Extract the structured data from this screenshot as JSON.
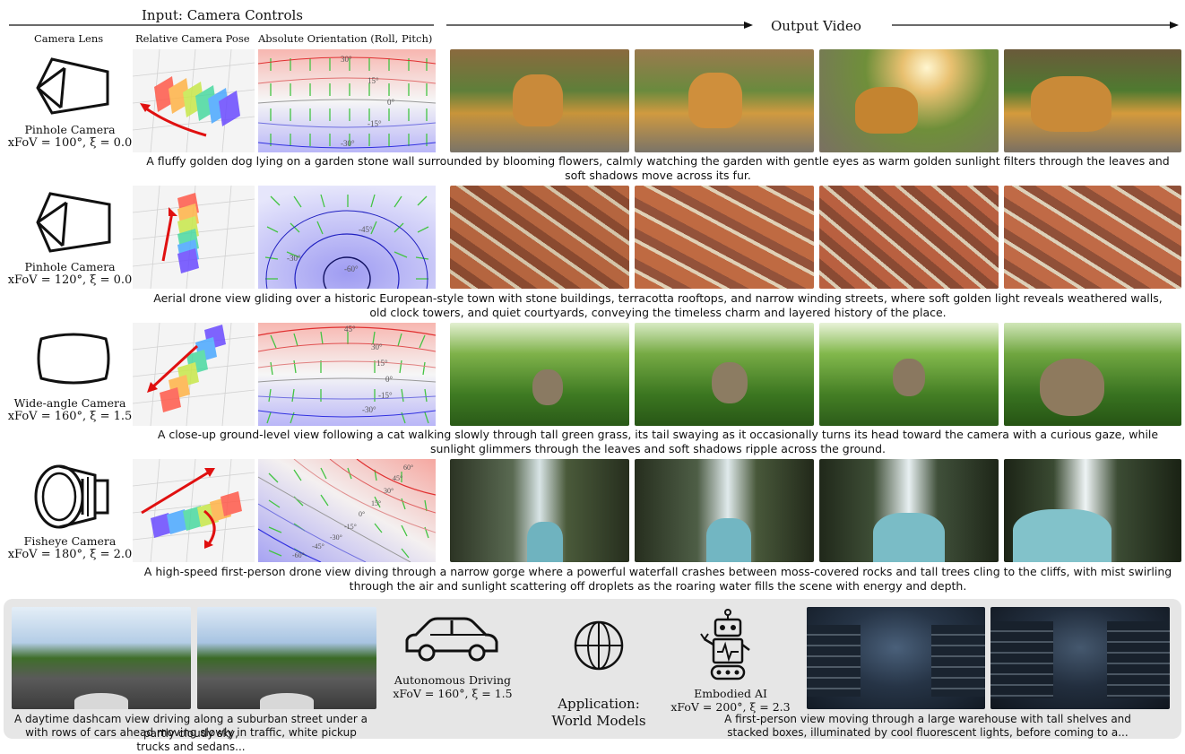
{
  "header": {
    "input_title": "Input: Camera Controls",
    "output_title": "Output Video",
    "col_lens": "Camera Lens",
    "col_pose": "Relative Camera Pose",
    "col_orient": "Absolute Orientation (Roll, Pitch)"
  },
  "rows": [
    {
      "camera": "Pinhole Camera",
      "params": "xFoV = 100°, ξ = 0.0",
      "caption": "A fluffy golden dog lying on a garden stone wall surrounded by blooming flowers, calmly watching the garden with gentle eyes as warm golden sunlight filters through the leaves and soft shadows move across its fur.",
      "orient_labels": [
        "30°",
        "15°",
        "0°",
        "-15°",
        "-30°"
      ],
      "colors": {
        "top": "#7a5a35",
        "mid": "#3f6b2a",
        "bottom": "#6e6a62"
      }
    },
    {
      "camera": "Pinhole Camera",
      "params": "xFoV = 120°, ξ = 0.0",
      "caption": "Aerial drone view gliding over a historic European-style town with stone buildings, terracotta rooftops, and narrow winding streets, where soft golden light reveals weathered walls, old clock towers, and quiet courtyards, conveying the timeless charm and layered history of the place.",
      "orient_labels": [
        "-30°",
        "-45°",
        "-60°"
      ],
      "colors": {
        "top": "#a86a45",
        "mid": "#b5563a",
        "bottom": "#8a4a35"
      }
    },
    {
      "camera": "Wide-angle Camera",
      "params": "xFoV = 160°, ξ = 1.5",
      "caption": "A close-up ground-level view following a cat walking slowly through tall green grass, its tail swaying as it occasionally turns its head toward the camera with a curious gaze, while sunlight glimmers through the leaves and soft shadows ripple across the ground.",
      "orient_labels": [
        "45°",
        "30°",
        "15°",
        "0°",
        "-15°",
        "-30°"
      ],
      "colors": {
        "top": "#d9e8c8",
        "mid": "#4f8a2c",
        "bottom": "#2f5a1c"
      }
    },
    {
      "camera": "Fisheye Camera",
      "params": "xFoV = 180°, ξ = 2.0",
      "caption": "A high-speed first-person drone view diving through a narrow gorge where a powerful waterfall crashes between moss-covered rocks and tall trees cling to the cliffs, with mist swirling through the air and sunlight scattering off droplets as the roaring water fills the scene with energy and depth.",
      "orient_labels": [
        "60°",
        "45°",
        "30°",
        "15°",
        "0°",
        "-15°",
        "-30°",
        "-45°",
        "-60°"
      ],
      "colors": {
        "top": "#6f7f88",
        "mid": "#2f3a2a",
        "bottom": "#5a8a8f"
      }
    }
  ],
  "application": {
    "driving_label": "Autonomous Driving",
    "driving_params": "xFoV = 160°, ξ = 1.5",
    "app_title_1": "Application:",
    "app_title_2": "World Models",
    "embodied_label": "Embodied AI",
    "embodied_params": "xFoV = 200°, ξ = 2.3",
    "driving_caption_1": "A daytime dashcam view driving along a suburban street under a partly cloudy sky,",
    "driving_caption_2": "with rows of cars ahead moving slowly in traffic, white pickup trucks and sedans...",
    "warehouse_caption_1": "A first-person view moving through a large warehouse with tall shelves and",
    "warehouse_caption_2": "stacked boxes, illuminated by cool fluorescent lights, before coming to a..."
  }
}
